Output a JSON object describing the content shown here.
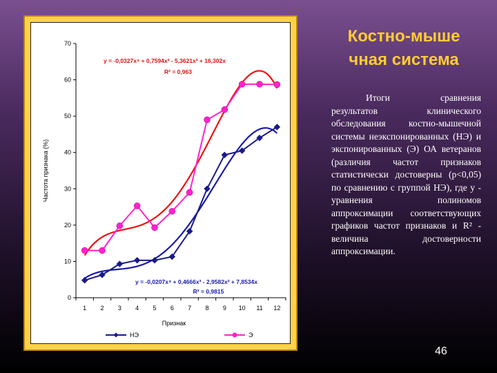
{
  "slide": {
    "title_line1": "Костно-мыше",
    "title_line2": "чная система",
    "body": "Итоги сравнения результатов клинического обследования костно-мышечной системы неэкспонированных (НЭ) и экспонированных (Э) ОА ветеранов (различия частот признаков статистически достоверны (р<0,05) по сравнению с группой НЭ), где у - уравнения полиномов аппроксимации соответствующих графиков частот признаков и R² - величина достоверности аппроксимации.",
    "page_number": "46"
  },
  "chart_data": {
    "type": "line",
    "title": "",
    "xlabel": "Признак",
    "ylabel": "Частота признака (%)",
    "categories": [
      "1",
      "2",
      "3",
      "4",
      "5",
      "6",
      "7",
      "8",
      "9",
      "10",
      "11",
      "12"
    ],
    "ylim": [
      0,
      70
    ],
    "yticks": [
      "0",
      "10",
      "20",
      "30",
      "40",
      "50",
      "60",
      "70"
    ],
    "legend_position": "bottom",
    "series": [
      {
        "name": "НЭ",
        "color": "#1a1a8c",
        "marker": "diamond",
        "values": [
          4.8,
          6.3,
          9.3,
          10.3,
          10.3,
          11.3,
          18.3,
          30.0,
          39.3,
          40.5,
          44.0,
          47.0
        ],
        "trend_color": "#1a1aaa",
        "equation": "y = -0,0207x⁴ + 0,4666x³ - 2,9582x² + 7,8534x",
        "r2": "R² = 0,9815"
      },
      {
        "name": "Э",
        "color": "#ff22cc",
        "marker": "circle",
        "values": [
          13.0,
          13.0,
          19.8,
          25.3,
          19.3,
          23.8,
          29.0,
          49.0,
          51.8,
          58.8,
          58.8,
          58.7
        ],
        "trend_color": "#ee1111",
        "equation": "y = -0,0327x⁴ + 0,7594x³ - 5,3621x² + 16,302x",
        "r2": "R² = 0,963"
      }
    ]
  }
}
